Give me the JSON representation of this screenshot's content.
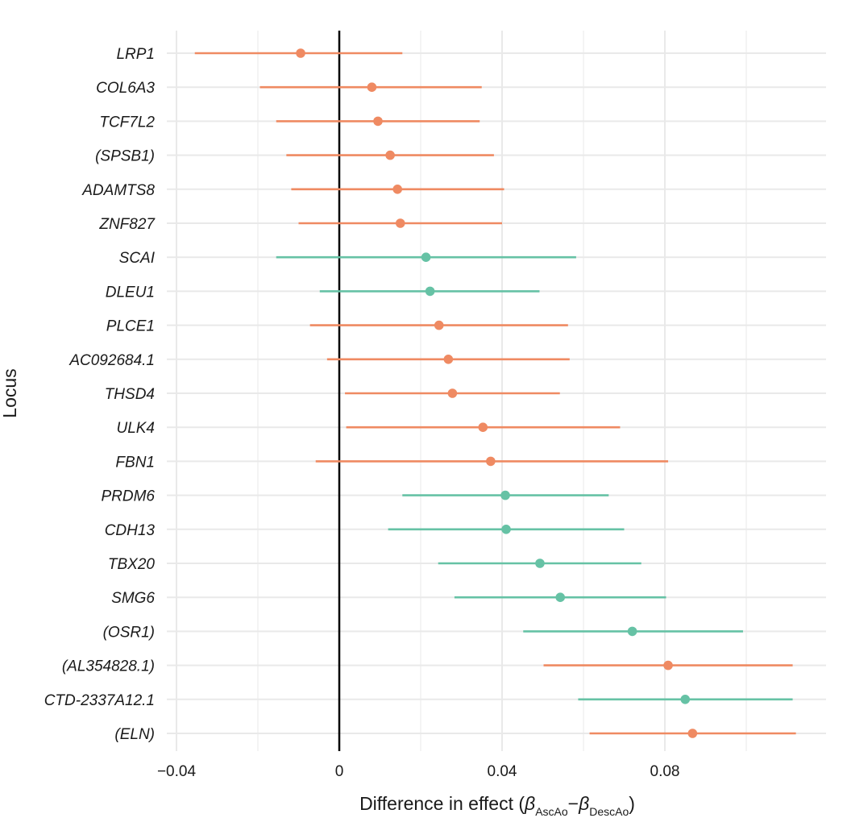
{
  "chart_data": {
    "type": "forest",
    "title": "",
    "xlabel": {
      "prefix": "Difference in effect (",
      "beta": "β",
      "sub1": "AscAo",
      "minus": "−",
      "sub2": "DescAo",
      "suffix": ")"
    },
    "ylabel": "Locus",
    "xlim": [
      -0.04,
      0.12
    ],
    "xticks": [
      -0.04,
      0,
      0.04,
      0.08
    ],
    "xtick_labels": [
      "−0.04",
      "0",
      "0.04",
      "0.08"
    ],
    "minor_gridlines": [
      -0.02,
      0.02,
      0.06,
      0.1
    ],
    "reference_line": 0,
    "colors": {
      "orange": "#ef8a62",
      "green": "#66c2a5",
      "grid": "#e9e9e9",
      "ref": "#000000"
    },
    "series": [
      {
        "locus": "LRP1",
        "estimate": -0.0095,
        "lower": -0.0355,
        "upper": 0.0155,
        "color": "orange"
      },
      {
        "locus": "COL6A3",
        "estimate": 0.008,
        "lower": -0.0195,
        "upper": 0.035,
        "color": "orange"
      },
      {
        "locus": "TCF7L2",
        "estimate": 0.0095,
        "lower": -0.0155,
        "upper": 0.0345,
        "color": "orange"
      },
      {
        "locus": "(SPSB1)",
        "estimate": 0.0125,
        "lower": -0.013,
        "upper": 0.038,
        "color": "orange"
      },
      {
        "locus": "ADAMTS8",
        "estimate": 0.0143,
        "lower": -0.0118,
        "upper": 0.0405,
        "color": "orange"
      },
      {
        "locus": "ZNF827",
        "estimate": 0.015,
        "lower": -0.01,
        "upper": 0.04,
        "color": "orange"
      },
      {
        "locus": "SCAI",
        "estimate": 0.0213,
        "lower": -0.0155,
        "upper": 0.0582,
        "color": "green"
      },
      {
        "locus": "DLEU1",
        "estimate": 0.0223,
        "lower": -0.0048,
        "upper": 0.0492,
        "color": "green"
      },
      {
        "locus": "PLCE1",
        "estimate": 0.0245,
        "lower": -0.0072,
        "upper": 0.0562,
        "color": "orange"
      },
      {
        "locus": "AC092684.1",
        "estimate": 0.0268,
        "lower": -0.003,
        "upper": 0.0566,
        "color": "orange"
      },
      {
        "locus": "THSD4",
        "estimate": 0.0278,
        "lower": 0.0014,
        "upper": 0.0542,
        "color": "orange"
      },
      {
        "locus": "ULK4",
        "estimate": 0.0353,
        "lower": 0.0017,
        "upper": 0.069,
        "color": "orange"
      },
      {
        "locus": "FBN1",
        "estimate": 0.0372,
        "lower": -0.0058,
        "upper": 0.0808,
        "color": "orange"
      },
      {
        "locus": "PRDM6",
        "estimate": 0.0408,
        "lower": 0.0155,
        "upper": 0.0662,
        "color": "green"
      },
      {
        "locus": "CDH13",
        "estimate": 0.041,
        "lower": 0.012,
        "upper": 0.07,
        "color": "green"
      },
      {
        "locus": "TBX20",
        "estimate": 0.0493,
        "lower": 0.0243,
        "upper": 0.0742,
        "color": "green"
      },
      {
        "locus": "SMG6",
        "estimate": 0.0543,
        "lower": 0.0283,
        "upper": 0.0803,
        "color": "green"
      },
      {
        "locus": "(OSR1)",
        "estimate": 0.072,
        "lower": 0.0452,
        "upper": 0.0992,
        "color": "green"
      },
      {
        "locus": "(AL354828.1)",
        "estimate": 0.0808,
        "lower": 0.0502,
        "upper": 0.1114,
        "color": "orange"
      },
      {
        "locus": "CTD-2337A12.1",
        "estimate": 0.085,
        "lower": 0.0587,
        "upper": 0.1114,
        "color": "green"
      },
      {
        "locus": "(ELN)",
        "estimate": 0.0868,
        "lower": 0.0615,
        "upper": 0.1122,
        "color": "orange"
      }
    ]
  }
}
